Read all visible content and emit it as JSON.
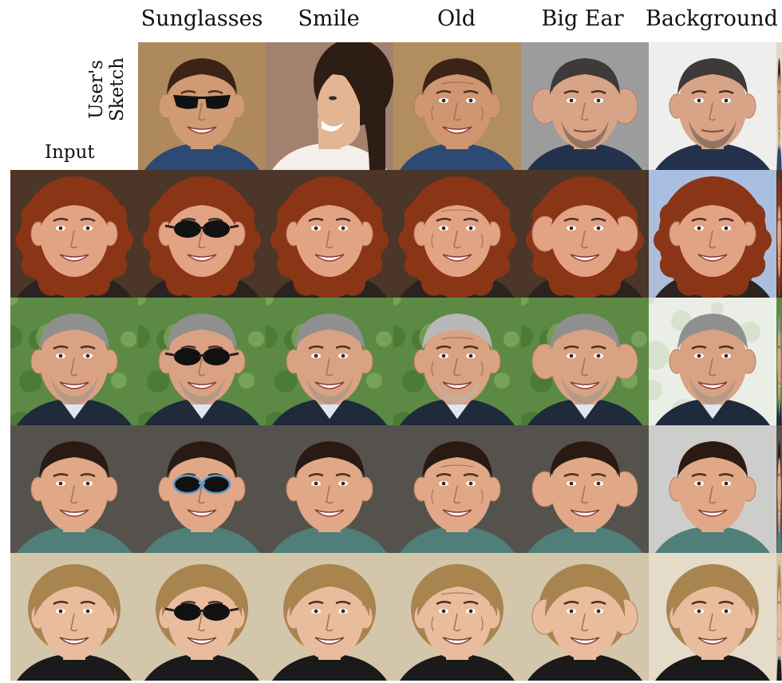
{
  "headers": {
    "sunglasses": "Sunglasses",
    "smile": "Smile",
    "old": "Old",
    "big_ear": "Big Ear",
    "background": "Background"
  },
  "labels": {
    "users_line1": "User's",
    "users_line2": "Sketch",
    "input": "Input"
  }
}
